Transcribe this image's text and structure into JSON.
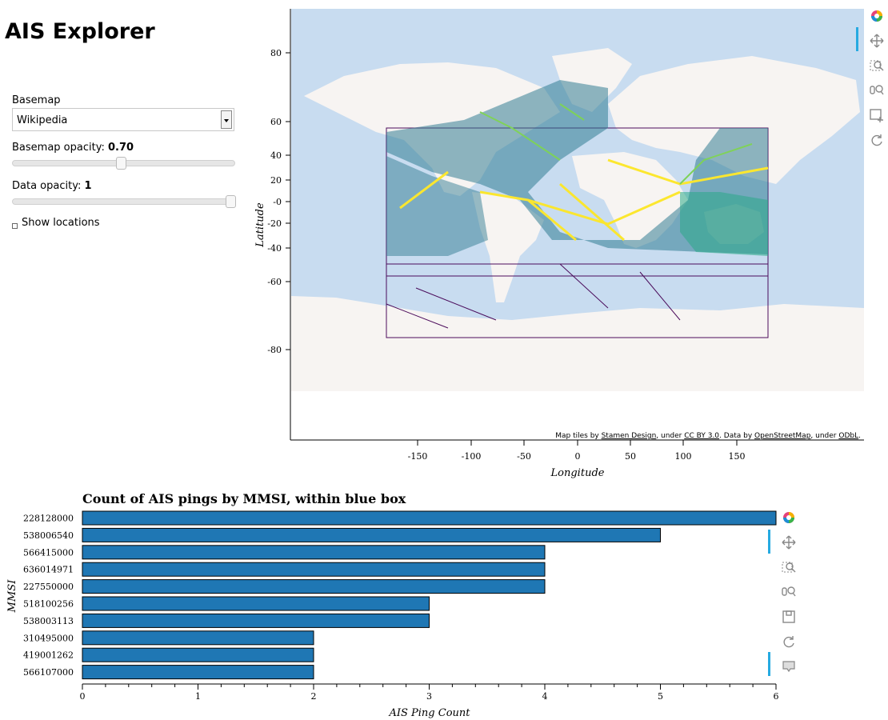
{
  "app": {
    "title": "AIS Explorer"
  },
  "controls": {
    "basemap": {
      "label": "Basemap",
      "value": "Wikipedia"
    },
    "basemap_opacity": {
      "label": "Basemap opacity: ",
      "value": "0.70",
      "level": 0.7
    },
    "data_opacity": {
      "label": "Data opacity: ",
      "value": "1",
      "level": 1.0
    },
    "show_locations": {
      "label": "Show locations",
      "checked": false
    }
  },
  "map": {
    "xlabel": "Longitude",
    "ylabel": "Latitude",
    "xticks": [
      "-150",
      "-100",
      "-50",
      "0",
      "50",
      "100",
      "150"
    ],
    "yticks": [
      "80",
      "60",
      "40",
      "20",
      "-0",
      "-20",
      "-40",
      "-60",
      "-80"
    ],
    "attribution": {
      "prefix": "Map tiles by ",
      "link1": "Stamen Design",
      "mid1": ", under ",
      "link2": "CC BY 3.0",
      "mid2": ". Data by ",
      "link3": "OpenStreetMap",
      "mid3": ", under ",
      "link4": "ODbL",
      "suffix": "."
    },
    "colors": {
      "ocean": "#c8dcf0",
      "land": "#f7f4f2",
      "low": "#440154",
      "mid": "#21918c",
      "high": "#fde725"
    }
  },
  "chart_data": {
    "type": "bar",
    "orientation": "horizontal",
    "title": "Count of AIS pings by MMSI, within blue box",
    "xlabel": "AIS Ping Count",
    "ylabel": "MMSI",
    "categories": [
      "228128000",
      "538006540",
      "566415000",
      "636014971",
      "227550000",
      "518100256",
      "538003113",
      "310495000",
      "419001262",
      "566107000"
    ],
    "values": [
      6,
      5,
      4,
      4,
      4,
      3,
      3,
      2,
      2,
      2
    ],
    "xlim": [
      0,
      6
    ],
    "xticks": [
      "0",
      "1",
      "2",
      "3",
      "4",
      "5",
      "6"
    ],
    "bar_color": "#1f77b4",
    "grid": false
  },
  "toolbar": {
    "map_tools": [
      "bokeh-logo-icon",
      "pan-icon",
      "box-zoom-icon",
      "wheel-zoom-icon",
      "box-select-icon",
      "reset-icon"
    ],
    "chart_tools": [
      "bokeh-logo-icon",
      "pan-icon",
      "box-zoom-icon",
      "wheel-zoom-icon",
      "save-icon",
      "reset-icon",
      "hover-icon"
    ]
  }
}
